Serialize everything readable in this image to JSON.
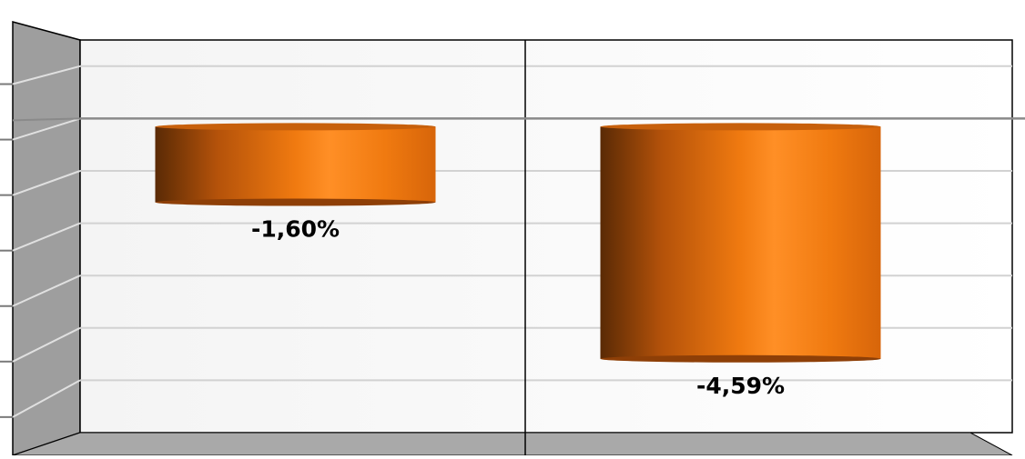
{
  "chart_data": {
    "type": "bar",
    "style": "3d-cylinder",
    "categories": [
      "",
      ""
    ],
    "series": [
      {
        "values": [
          -1.6,
          -4.59
        ],
        "color": "#F07A10"
      }
    ],
    "labels": [
      "-1,60%",
      "-4,59%"
    ],
    "ylim": [
      -6.0,
      1.5
    ],
    "grid": true,
    "legend": "none"
  }
}
